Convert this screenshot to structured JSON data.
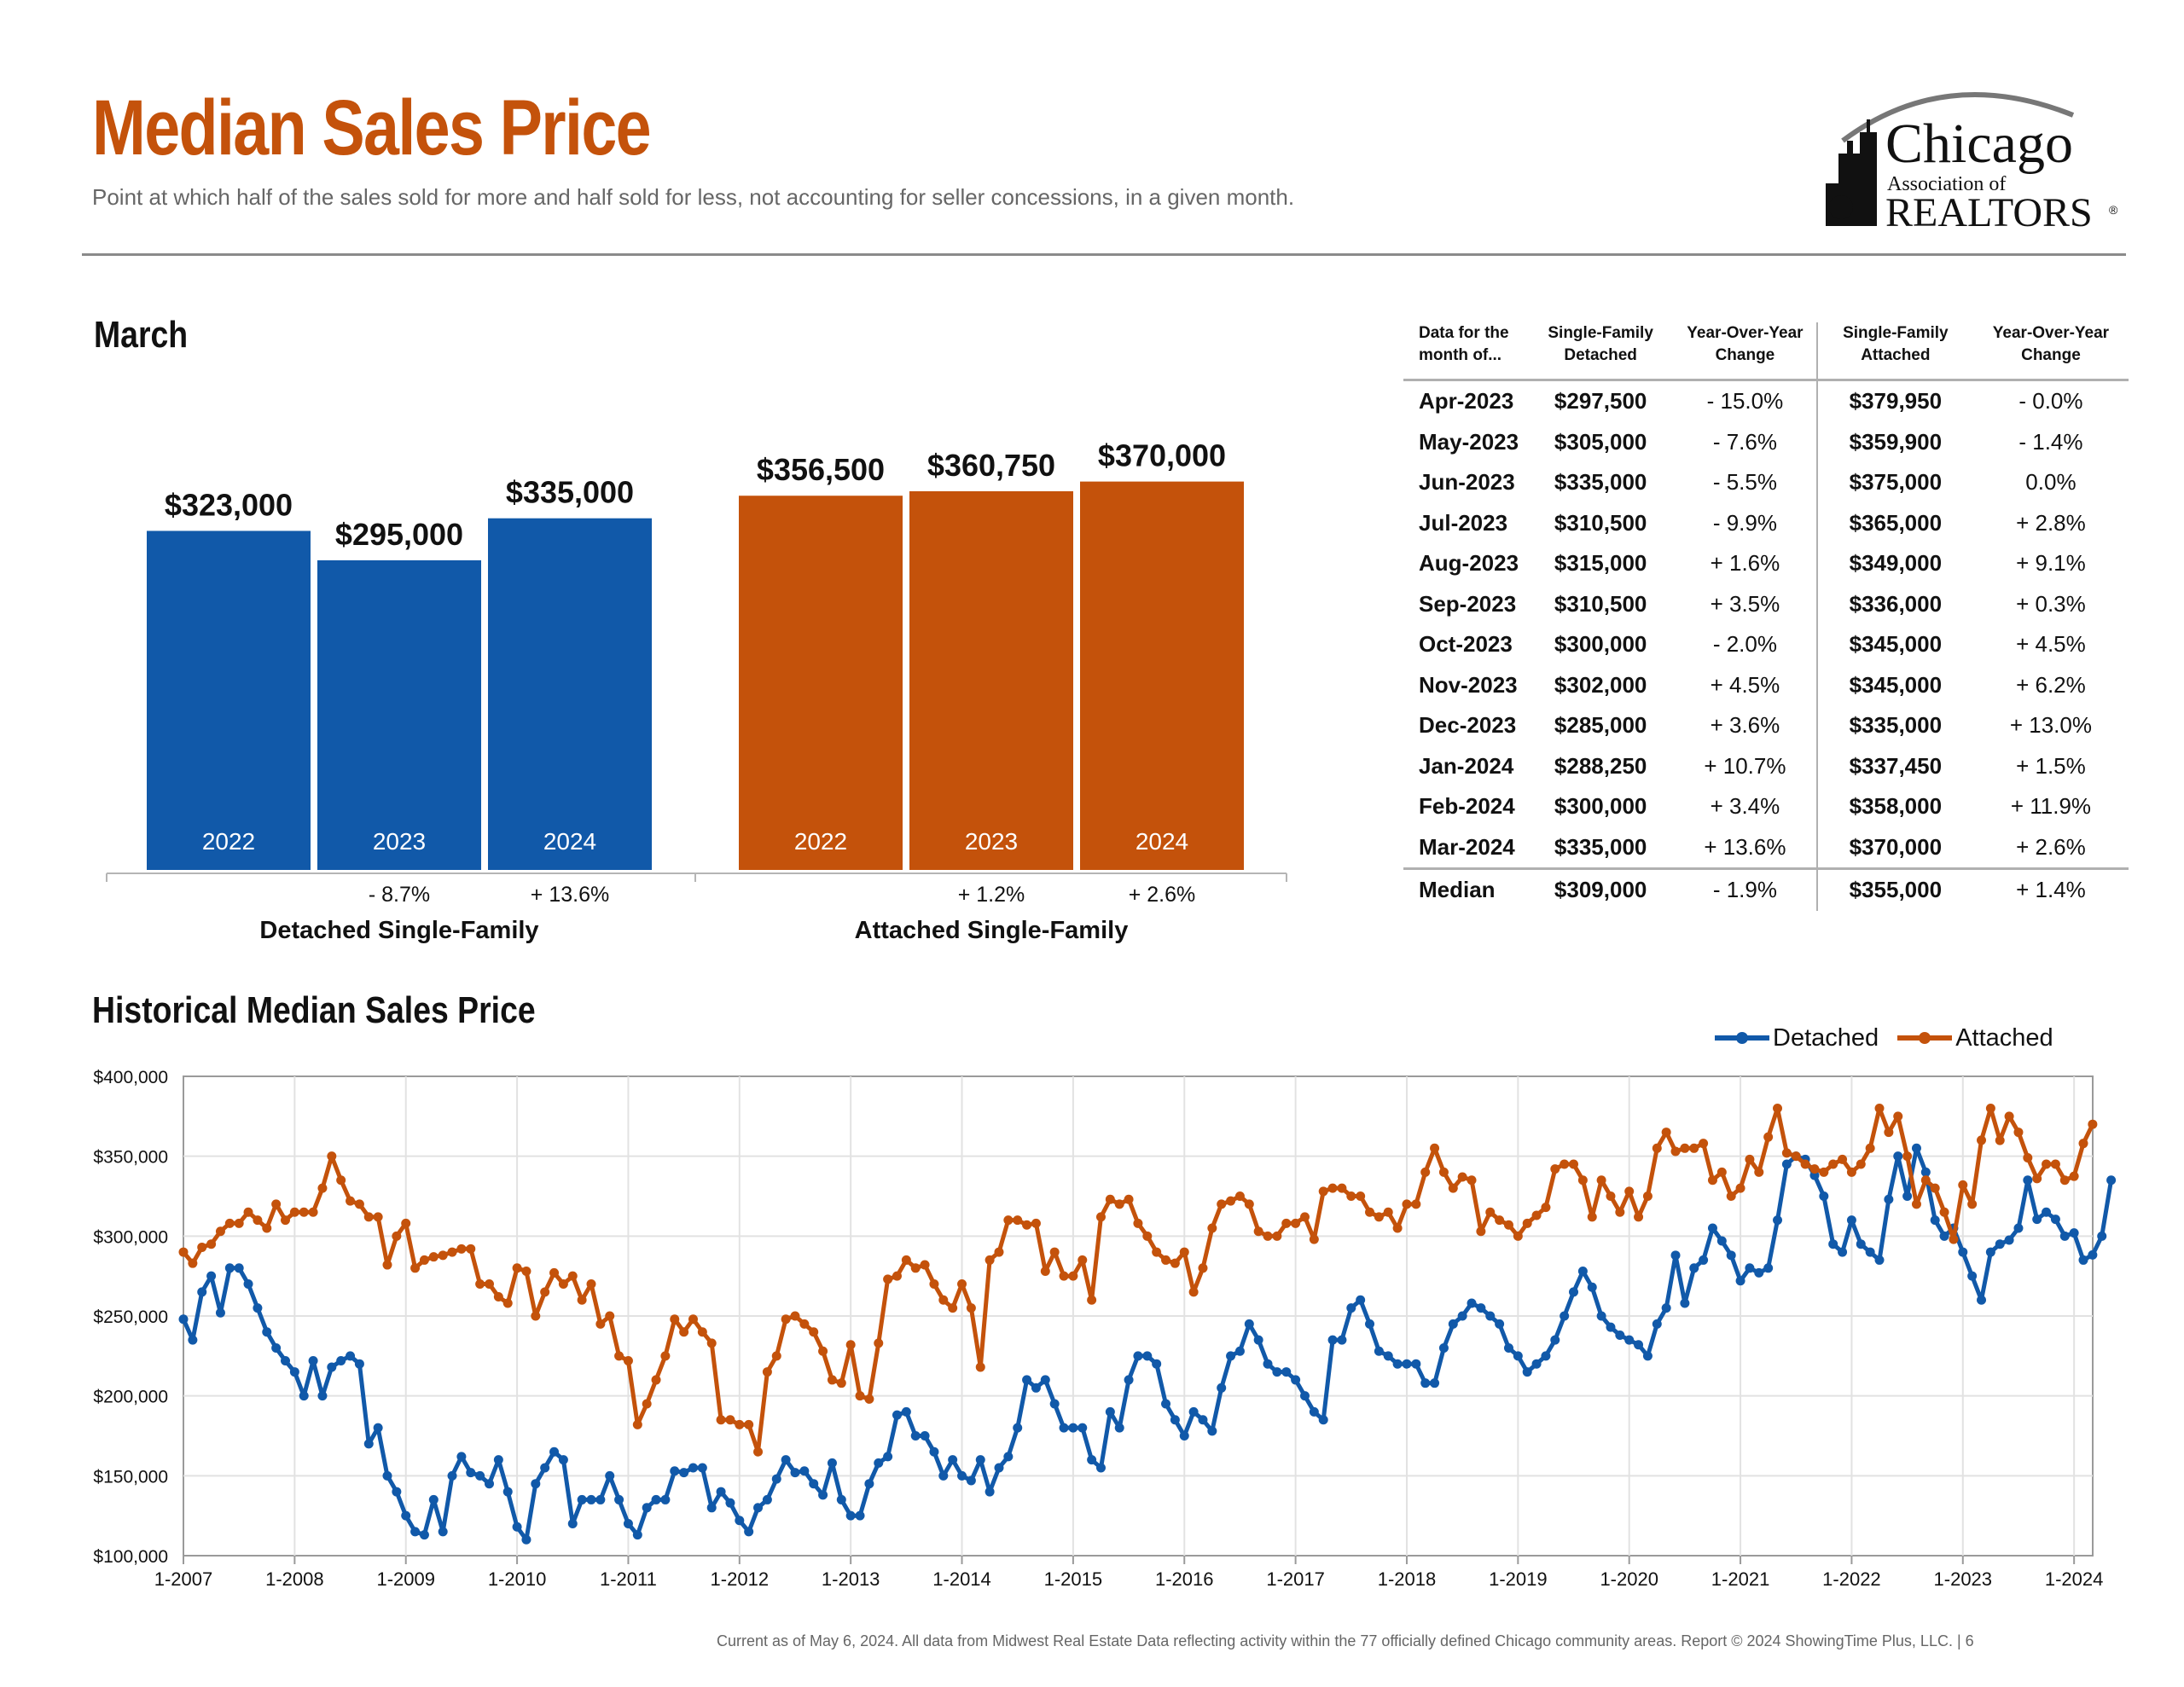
{
  "header": {
    "title": "Median Sales Price",
    "subtitle": "Point at which half of the sales sold for more and half sold for less, not accounting for seller concessions, in a given month.",
    "logo": {
      "line1": "Chicago",
      "line2": "Association of",
      "line3": "REALTORS",
      "mark": "®"
    }
  },
  "colors": {
    "detached": "#1159a9",
    "attached": "#c4520b",
    "title": "#c4520b"
  },
  "march_section": {
    "title": "March"
  },
  "historical_section": {
    "title": "Historical Median Sales Price"
  },
  "legend": {
    "detached": "Detached",
    "attached": "Attached"
  },
  "chart_data": [
    {
      "type": "bar",
      "title": "March",
      "groups": [
        {
          "name": "Detached Single-Family",
          "categories": [
            "2022",
            "2023",
            "2024"
          ],
          "values": [
            323000,
            295000,
            335000
          ],
          "value_labels": [
            "$323,000",
            "$295,000",
            "$335,000"
          ],
          "changes": [
            "",
            "- 8.7%",
            "+ 13.6%"
          ]
        },
        {
          "name": "Attached Single-Family",
          "categories": [
            "2022",
            "2023",
            "2024"
          ],
          "values": [
            356500,
            360750,
            370000
          ],
          "value_labels": [
            "$356,500",
            "$360,750",
            "$370,000"
          ],
          "changes": [
            "",
            "+ 1.2%",
            "+ 2.6%"
          ]
        }
      ]
    },
    {
      "type": "table",
      "columns": [
        "Data for the month of...",
        "Single-Family Detached",
        "Year-Over-Year Change",
        "Single-Family Attached",
        "Year-Over-Year Change"
      ],
      "rows": [
        [
          "Apr-2023",
          "$297,500",
          "- 15.0%",
          "$379,950",
          "- 0.0%"
        ],
        [
          "May-2023",
          "$305,000",
          "- 7.6%",
          "$359,900",
          "- 1.4%"
        ],
        [
          "Jun-2023",
          "$335,000",
          "- 5.5%",
          "$375,000",
          "0.0%"
        ],
        [
          "Jul-2023",
          "$310,500",
          "- 9.9%",
          "$365,000",
          "+ 2.8%"
        ],
        [
          "Aug-2023",
          "$315,000",
          "+ 1.6%",
          "$349,000",
          "+ 9.1%"
        ],
        [
          "Sep-2023",
          "$310,500",
          "+ 3.5%",
          "$336,000",
          "+ 0.3%"
        ],
        [
          "Oct-2023",
          "$300,000",
          "- 2.0%",
          "$345,000",
          "+ 4.5%"
        ],
        [
          "Nov-2023",
          "$302,000",
          "+ 4.5%",
          "$345,000",
          "+ 6.2%"
        ],
        [
          "Dec-2023",
          "$285,000",
          "+ 3.6%",
          "$335,000",
          "+ 13.0%"
        ],
        [
          "Jan-2024",
          "$288,250",
          "+ 10.7%",
          "$337,450",
          "+ 1.5%"
        ],
        [
          "Feb-2024",
          "$300,000",
          "+ 3.4%",
          "$358,000",
          "+ 11.9%"
        ],
        [
          "Mar-2024",
          "$335,000",
          "+ 13.6%",
          "$370,000",
          "+ 2.6%"
        ]
      ],
      "median_row": [
        "Median",
        "$309,000",
        "- 1.9%",
        "$355,000",
        "+ 1.4%"
      ]
    },
    {
      "type": "line",
      "title": "Historical Median Sales Price",
      "x_start": "1-2007",
      "x_end": "3-2024",
      "x_ticks": [
        "1-2007",
        "1-2008",
        "1-2009",
        "1-2010",
        "1-2011",
        "1-2012",
        "1-2013",
        "1-2014",
        "1-2015",
        "1-2016",
        "1-2017",
        "1-2018",
        "1-2019",
        "1-2020",
        "1-2021",
        "1-2022",
        "1-2023",
        "1-2024"
      ],
      "y_ticks": [
        "$100,000",
        "$150,000",
        "$200,000",
        "$250,000",
        "$300,000",
        "$350,000",
        "$400,000"
      ],
      "ylim": [
        100000,
        400000
      ],
      "grid": true,
      "legend_position": "top-right",
      "series": [
        {
          "name": "Detached",
          "values": [
            248000,
            235000,
            265000,
            275000,
            252000,
            280000,
            280000,
            270000,
            255000,
            240000,
            230000,
            222000,
            215000,
            200000,
            222000,
            200000,
            218000,
            222000,
            225000,
            220000,
            170000,
            180000,
            150000,
            140000,
            125000,
            115000,
            113000,
            135000,
            115000,
            150000,
            162000,
            152000,
            150000,
            145000,
            160000,
            140000,
            118000,
            110000,
            145000,
            155000,
            165000,
            160000,
            120000,
            135000,
            135000,
            135000,
            150000,
            135000,
            120000,
            113000,
            130000,
            135000,
            135000,
            153000,
            152000,
            155000,
            155000,
            130000,
            140000,
            133000,
            122000,
            115000,
            130000,
            135000,
            148000,
            160000,
            152000,
            153000,
            145000,
            138000,
            158000,
            135000,
            125000,
            125000,
            145000,
            158000,
            162000,
            188000,
            190000,
            175000,
            175000,
            165000,
            150000,
            160000,
            150000,
            147000,
            160000,
            140000,
            155000,
            162000,
            180000,
            210000,
            205000,
            210000,
            195000,
            180000,
            180000,
            180000,
            160000,
            155000,
            190000,
            180000,
            210000,
            225000,
            225000,
            220000,
            195000,
            185000,
            175000,
            190000,
            185000,
            178000,
            205000,
            225000,
            228000,
            245000,
            235000,
            220000,
            215000,
            215000,
            210000,
            200000,
            190000,
            185000,
            235000,
            235000,
            255000,
            260000,
            245000,
            228000,
            225000,
            220000,
            220000,
            220000,
            208000,
            208000,
            230000,
            245000,
            250000,
            258000,
            255000,
            250000,
            245000,
            230000,
            225000,
            215000,
            220000,
            225000,
            235000,
            250000,
            265000,
            278000,
            268000,
            250000,
            243000,
            238000,
            235000,
            232000,
            225000,
            245000,
            255000,
            288000,
            258000,
            280000,
            285000,
            305000,
            297000,
            288000,
            272000,
            280000,
            277000,
            280000,
            310000,
            345000,
            350000,
            348000,
            338000,
            325000,
            295000,
            290000,
            310000,
            295000,
            290000,
            285000,
            323000,
            350000,
            325000,
            355000,
            340000,
            310000,
            300000,
            305000,
            290000,
            275000,
            260000,
            290000,
            295000,
            297500,
            305000,
            335000,
            310500,
            315000,
            310500,
            300000,
            302000,
            285000,
            288250,
            300000,
            335000
          ]
        },
        {
          "name": "Attached",
          "values": [
            290000,
            283000,
            293000,
            295000,
            303000,
            308000,
            308000,
            315000,
            310000,
            305000,
            320000,
            310000,
            315000,
            315000,
            315000,
            330000,
            350000,
            335000,
            322000,
            320000,
            312000,
            312000,
            282000,
            300000,
            308000,
            280000,
            285000,
            287000,
            288000,
            290000,
            292000,
            292000,
            270000,
            270000,
            262000,
            258000,
            280000,
            278000,
            250000,
            265000,
            277000,
            270000,
            275000,
            260000,
            270000,
            245000,
            250000,
            225000,
            222000,
            182000,
            195000,
            210000,
            225000,
            248000,
            240000,
            248000,
            240000,
            233000,
            185000,
            185000,
            182000,
            182000,
            165000,
            215000,
            225000,
            248000,
            250000,
            245000,
            240000,
            228000,
            210000,
            208000,
            232000,
            200000,
            198000,
            233000,
            273000,
            275000,
            285000,
            280000,
            282000,
            270000,
            260000,
            255000,
            270000,
            255000,
            218000,
            285000,
            290000,
            310000,
            310000,
            307000,
            308000,
            278000,
            290000,
            275000,
            275000,
            285000,
            260000,
            312000,
            323000,
            320000,
            323000,
            308000,
            300000,
            290000,
            285000,
            283000,
            290000,
            265000,
            280000,
            305000,
            320000,
            322000,
            325000,
            320000,
            303000,
            300000,
            300000,
            308000,
            308000,
            312000,
            298000,
            328000,
            330000,
            330000,
            325000,
            325000,
            315000,
            312000,
            315000,
            305000,
            320000,
            320000,
            340000,
            355000,
            340000,
            330000,
            337000,
            335000,
            303000,
            315000,
            310000,
            307000,
            300000,
            308000,
            313000,
            318000,
            342000,
            345000,
            345000,
            335000,
            312000,
            335000,
            325000,
            315000,
            328000,
            312000,
            325000,
            355000,
            365000,
            353000,
            355000,
            355000,
            358000,
            335000,
            340000,
            325000,
            330000,
            348000,
            340000,
            362000,
            380000,
            352000,
            350000,
            345000,
            342000,
            340000,
            345000,
            348000,
            340000,
            345000,
            355000,
            380000,
            365000,
            375000,
            350000,
            320000,
            335000,
            330000,
            315000,
            298000,
            332000,
            320000,
            360000,
            379950,
            359900,
            375000,
            365000,
            349000,
            336000,
            345000,
            345000,
            335000,
            337450,
            358000,
            370000
          ]
        }
      ]
    }
  ],
  "footer": {
    "text": "Current as of May 6, 2024.  All data from Midwest Real Estate Data reflecting activity within the 77 officially defined Chicago community areas. Report © 2024 ShowingTime Plus, LLC.  |  6"
  }
}
